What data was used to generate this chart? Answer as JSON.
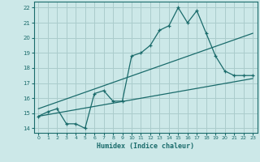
{
  "title": "",
  "xlabel": "Humidex (Indice chaleur)",
  "bg_color": "#cce8e8",
  "grid_color": "#aacccc",
  "line_color": "#1a6b6b",
  "xlim": [
    -0.5,
    23.5
  ],
  "ylim": [
    13.7,
    22.4
  ],
  "xticks": [
    0,
    1,
    2,
    3,
    4,
    5,
    6,
    7,
    8,
    9,
    10,
    11,
    12,
    13,
    14,
    15,
    16,
    17,
    18,
    19,
    20,
    21,
    22,
    23
  ],
  "yticks": [
    14,
    15,
    16,
    17,
    18,
    19,
    20,
    21,
    22
  ],
  "main_x": [
    0,
    1,
    2,
    3,
    4,
    5,
    6,
    7,
    8,
    9,
    10,
    11,
    12,
    13,
    14,
    15,
    16,
    17,
    18,
    19,
    20,
    21,
    22,
    23
  ],
  "main_y": [
    14.8,
    15.1,
    15.3,
    14.3,
    14.3,
    14.0,
    16.3,
    16.5,
    15.8,
    15.8,
    18.8,
    19.0,
    19.5,
    20.5,
    20.8,
    22.0,
    21.0,
    21.8,
    20.3,
    18.8,
    17.8,
    17.5,
    17.5,
    17.5
  ],
  "line2_x": [
    0,
    23
  ],
  "line2_y": [
    14.8,
    17.3
  ],
  "line3_x": [
    0,
    23
  ],
  "line3_y": [
    15.3,
    20.3
  ]
}
